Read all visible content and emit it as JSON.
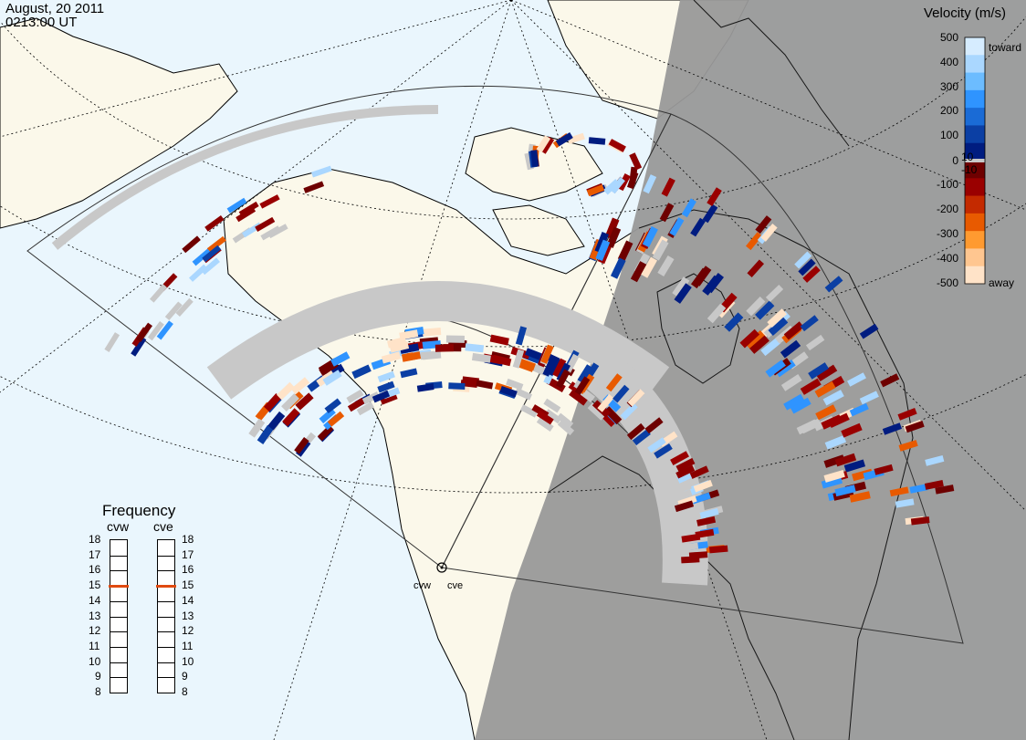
{
  "header": {
    "date": "August, 20 2011",
    "time": "0213:00 UT"
  },
  "radars": [
    {
      "id": "cvw",
      "label": "cvw",
      "frequency_mhz": 15
    },
    {
      "id": "cve",
      "label": "cve",
      "frequency_mhz": 15
    }
  ],
  "frequency_panel": {
    "title": "Frequency",
    "scale": [
      18,
      17,
      16,
      15,
      14,
      13,
      12,
      11,
      10,
      9,
      8
    ]
  },
  "velocity_legend": {
    "title": "Velocity (m/s)",
    "ticks": [
      "500",
      "400",
      "300",
      "200",
      "100",
      "10",
      "0",
      "-10",
      "-100",
      "-200",
      "-300",
      "-400",
      "-500"
    ],
    "toward_label": "toward",
    "away_label": "away",
    "colors": [
      "#d6ecff",
      "#aad7ff",
      "#6cbcff",
      "#2f94ff",
      "#1a6bd6",
      "#0b3fa4",
      "#001c80",
      "#6e0000",
      "#9a0000",
      "#c42a00",
      "#e85a00",
      "#ff9a30",
      "#ffc690",
      "#ffe3c8"
    ],
    "ground_scatter_color": "#c8c8c8"
  },
  "map_colors": {
    "ocean": "#eaf6fd",
    "land": "#fbf8ea",
    "night": "#999999"
  }
}
